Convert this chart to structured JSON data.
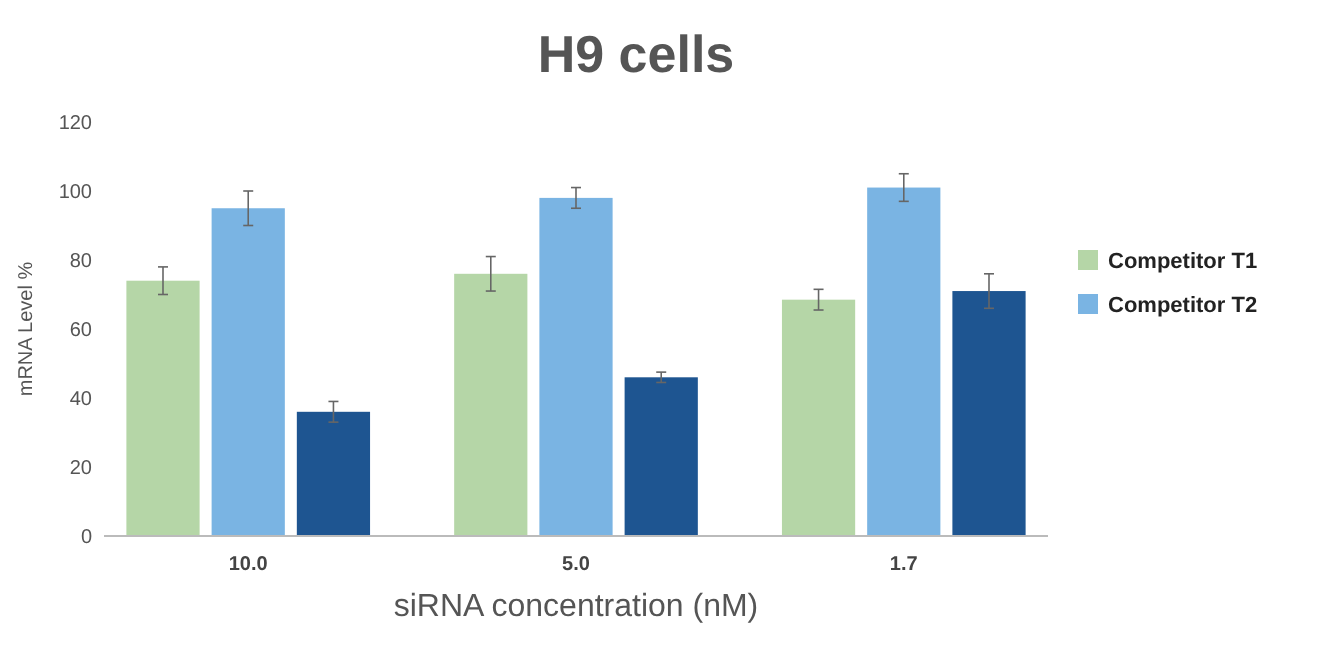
{
  "chart_data": {
    "type": "bar",
    "title": "H9 cells",
    "xlabel": "siRNA concentration (nM)",
    "ylabel": "mRNA Level %",
    "categories": [
      "10.0",
      "5.0",
      "1.7"
    ],
    "series": [
      {
        "name": "Competitor T1",
        "color": "#b5d6a7",
        "values": [
          74,
          76,
          68.5
        ],
        "errors": [
          4,
          5,
          3
        ]
      },
      {
        "name": "Competitor T2",
        "color": "#7ab4e3",
        "values": [
          95,
          98,
          101
        ],
        "errors": [
          5,
          3,
          4
        ]
      },
      {
        "color": "#1e5591",
        "values": [
          36,
          46,
          71
        ],
        "errors": [
          3,
          1.5,
          5
        ]
      }
    ],
    "ylim": [
      0,
      120
    ],
    "yticks": [
      0,
      20,
      40,
      60,
      80,
      100,
      120
    ],
    "grid": false,
    "legend": "right"
  }
}
